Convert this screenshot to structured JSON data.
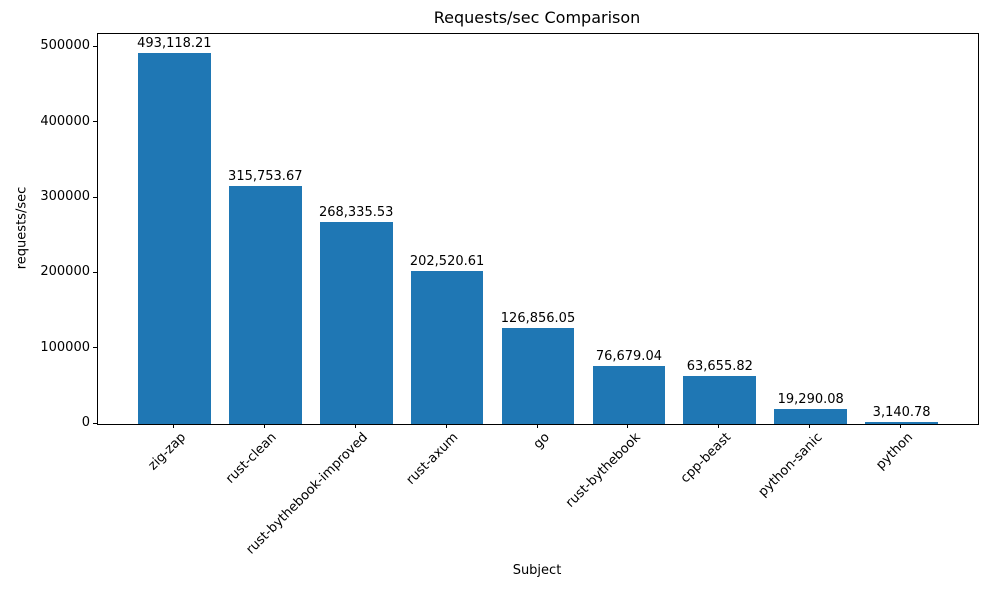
{
  "chart_data": {
    "type": "bar",
    "title": "Requests/sec Comparison",
    "xlabel": "Subject",
    "ylabel": "requests/sec",
    "categories": [
      "zig-zap",
      "rust-clean",
      "rust-bythebook-improved",
      "rust-axum",
      "go",
      "rust-bythebook",
      "cpp-beast",
      "python-sanic",
      "python"
    ],
    "values": [
      493118.21,
      315753.67,
      268335.53,
      202520.61,
      126856.05,
      76679.04,
      63655.82,
      19290.08,
      3140.78
    ],
    "value_labels": [
      "493,118.21",
      "315,753.67",
      "268,335.53",
      "202,520.61",
      "126,856.05",
      "76,679.04",
      "63,655.82",
      "19,290.08",
      "3,140.78"
    ],
    "yticks": [
      0,
      100000,
      200000,
      300000,
      400000,
      500000
    ],
    "ytick_labels": [
      "0",
      "100000",
      "200000",
      "300000",
      "400000",
      "500000"
    ],
    "ylim": [
      0,
      517774
    ],
    "xlim": [
      -0.84,
      8.84
    ],
    "bar_width": 0.8,
    "bar_color": "#1f77b4",
    "text_color": "#000000",
    "grid": false,
    "legend_position": "none",
    "x_tick_rotation_deg": 45
  }
}
